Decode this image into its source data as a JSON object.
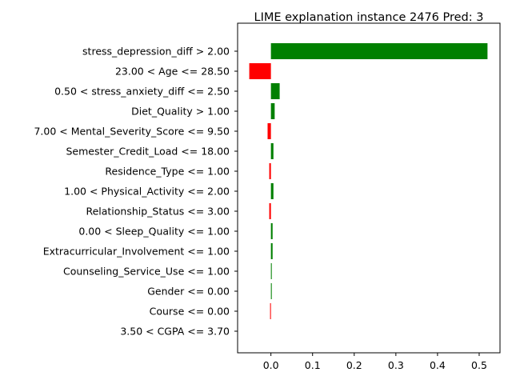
{
  "chart_data": {
    "type": "bar",
    "orientation": "horizontal",
    "title": "LIME explanation instance 2476 Pred: 3",
    "xlabel": "",
    "ylabel": "",
    "xlim": [
      -0.08,
      0.55
    ],
    "xticks": [
      "0.0",
      "0.1",
      "0.2",
      "0.3",
      "0.4",
      "0.5"
    ],
    "xtick_values": [
      0.0,
      0.1,
      0.2,
      0.3,
      0.4,
      0.5
    ],
    "grid": false,
    "legend": "none",
    "colors": {
      "positive": "#008000",
      "negative": "#ff0000"
    },
    "categories": [
      "stress_depression_diff > 2.00",
      "23.00 < Age <= 28.50",
      "0.50 < stress_anxiety_diff <= 2.50",
      "Diet_Quality > 1.00",
      "7.00 < Mental_Severity_Score <= 9.50",
      "Semester_Credit_Load <= 18.00",
      "Residence_Type <= 1.00",
      "1.00 < Physical_Activity <= 2.00",
      "Relationship_Status <= 3.00",
      "0.00 < Sleep_Quality <= 1.00",
      "Extracurricular_Involvement <= 1.00",
      "Counseling_Service_Use <= 1.00",
      "Gender <= 0.00",
      "Course <= 0.00",
      "3.50 < CGPA <= 3.70"
    ],
    "values": [
      0.52,
      -0.052,
      0.021,
      0.009,
      -0.008,
      0.006,
      -0.004,
      0.006,
      -0.004,
      0.004,
      0.004,
      0.002,
      0.002,
      -0.002,
      0.0
    ]
  }
}
